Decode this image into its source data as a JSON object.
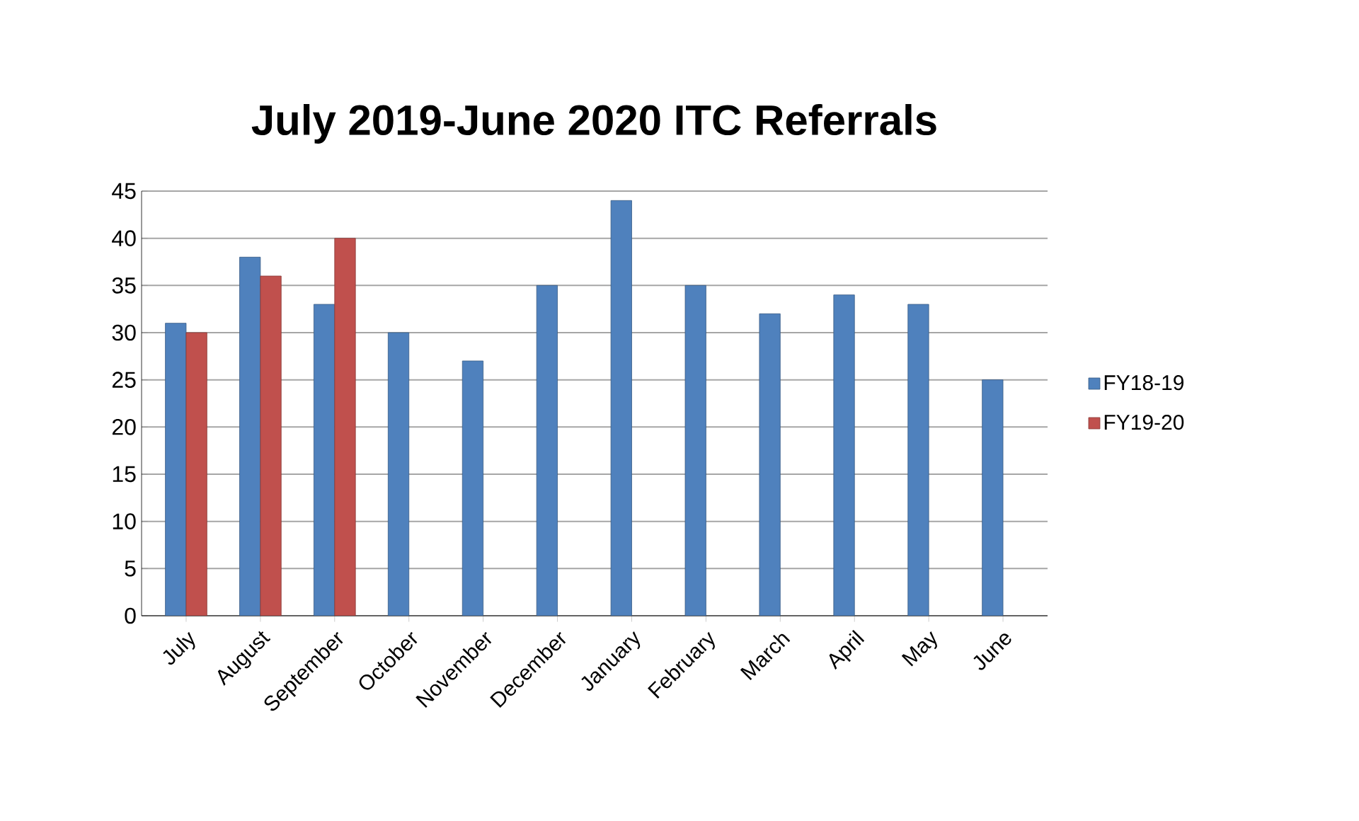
{
  "chart_data": {
    "type": "bar",
    "title": "July 2019-June 2020 ITC Referrals",
    "categories": [
      "July",
      "August",
      "September",
      "October",
      "November",
      "December",
      "January",
      "February",
      "March",
      "April",
      "May",
      "June"
    ],
    "series": [
      {
        "name": "FY18-19",
        "color": "#4f81bd",
        "values": [
          31,
          38,
          33,
          30,
          27,
          35,
          44,
          35,
          32,
          34,
          33,
          25
        ]
      },
      {
        "name": "FY19-20",
        "color": "#c0504d",
        "values": [
          30,
          36,
          40,
          null,
          null,
          null,
          null,
          null,
          null,
          null,
          null,
          null
        ]
      }
    ],
    "ylim": [
      0,
      45
    ],
    "yticks": [
      0,
      5,
      10,
      15,
      20,
      25,
      30,
      35,
      40,
      45
    ],
    "grid": "y",
    "legend": "right"
  }
}
